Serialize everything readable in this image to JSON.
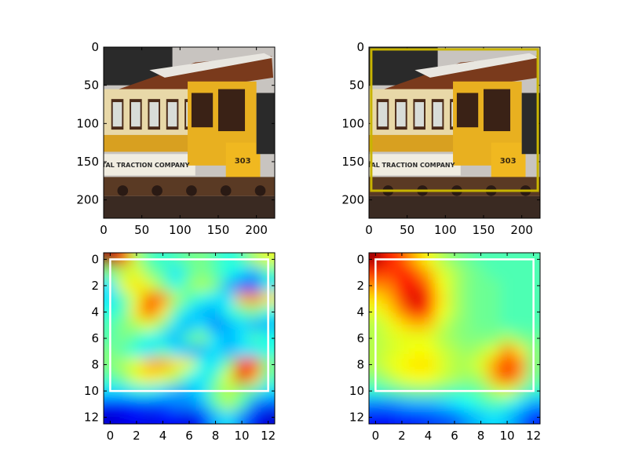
{
  "chart_data": [
    {
      "type": "image",
      "content": "photo of a yellow cable car / streetcar, number 303, lettering 'TRACTION COMPANY'",
      "xlim": [
        0,
        224
      ],
      "ylim": [
        224,
        0
      ],
      "xticks": [
        0,
        50,
        100,
        150,
        200
      ],
      "yticks": [
        0,
        50,
        100,
        150,
        200
      ],
      "box": null
    },
    {
      "type": "image",
      "content": "same streetcar photo with a yellow bounding box",
      "xlim": [
        0,
        224
      ],
      "ylim": [
        224,
        0
      ],
      "xticks": [
        0,
        50,
        100,
        150,
        200
      ],
      "yticks": [
        0,
        50,
        100,
        150,
        200
      ],
      "box": {
        "x0": 3,
        "y0": 3,
        "x1": 221,
        "y1": 188,
        "color": "#c8b400"
      }
    },
    {
      "type": "heatmap",
      "colormap": "jet",
      "xlim": [
        -0.5,
        12.5
      ],
      "ylim": [
        12.5,
        -0.5
      ],
      "xticks": [
        0,
        2,
        4,
        6,
        8,
        10,
        12
      ],
      "yticks": [
        0,
        2,
        4,
        6,
        8,
        10,
        12
      ],
      "box": {
        "x0": 0,
        "y0": 0,
        "x1": 12,
        "y1": 10,
        "color": "#ffffff"
      },
      "values": [
        [
          0.98,
          0.85,
          0.55,
          0.45,
          0.42,
          0.45,
          0.48,
          0.5,
          0.45,
          0.4,
          0.45,
          0.55,
          0.6
        ],
        [
          0.5,
          0.55,
          0.6,
          0.5,
          0.45,
          0.35,
          0.45,
          0.5,
          0.45,
          0.4,
          0.35,
          0.3,
          0.45
        ],
        [
          0.35,
          0.6,
          0.65,
          0.6,
          0.5,
          0.4,
          0.5,
          0.55,
          0.5,
          0.3,
          0.2,
          0.2,
          0.35
        ],
        [
          0.35,
          0.45,
          0.6,
          0.8,
          0.75,
          0.55,
          0.45,
          0.4,
          0.35,
          0.35,
          0.7,
          0.75,
          0.65
        ],
        [
          0.4,
          0.45,
          0.65,
          0.82,
          0.65,
          0.45,
          0.35,
          0.3,
          0.3,
          0.4,
          0.45,
          0.5,
          0.4
        ],
        [
          0.45,
          0.5,
          0.55,
          0.6,
          0.5,
          0.35,
          0.3,
          0.35,
          0.25,
          0.3,
          0.35,
          0.3,
          0.3
        ],
        [
          0.45,
          0.5,
          0.45,
          0.4,
          0.35,
          0.3,
          0.45,
          0.5,
          0.35,
          0.3,
          0.35,
          0.45,
          0.4
        ],
        [
          0.5,
          0.45,
          0.4,
          0.35,
          0.45,
          0.35,
          0.3,
          0.3,
          0.35,
          0.3,
          0.35,
          0.35,
          0.4
        ],
        [
          0.5,
          0.55,
          0.6,
          0.7,
          0.72,
          0.65,
          0.6,
          0.4,
          0.35,
          0.5,
          0.85,
          0.8,
          0.5
        ],
        [
          0.45,
          0.5,
          0.6,
          0.65,
          0.6,
          0.55,
          0.4,
          0.35,
          0.45,
          0.6,
          0.9,
          0.7,
          0.45
        ],
        [
          0.35,
          0.35,
          0.4,
          0.4,
          0.35,
          0.3,
          0.3,
          0.35,
          0.5,
          0.55,
          0.5,
          0.45,
          0.35
        ],
        [
          0.15,
          0.15,
          0.18,
          0.2,
          0.2,
          0.25,
          0.25,
          0.3,
          0.45,
          0.55,
          0.45,
          0.25,
          0.2
        ],
        [
          0.08,
          0.1,
          0.12,
          0.1,
          0.12,
          0.12,
          0.1,
          0.15,
          0.3,
          0.35,
          0.25,
          0.12,
          0.08
        ]
      ]
    },
    {
      "type": "heatmap",
      "colormap": "jet",
      "xlim": [
        -0.5,
        12.5
      ],
      "ylim": [
        12.5,
        -0.5
      ],
      "xticks": [
        0,
        2,
        4,
        6,
        8,
        10,
        12
      ],
      "yticks": [
        0,
        2,
        4,
        6,
        8,
        10,
        12
      ],
      "box": {
        "x0": 0,
        "y0": 0,
        "x1": 12,
        "y1": 10,
        "color": "#ffffff"
      },
      "values": [
        [
          0.98,
          0.85,
          0.8,
          0.7,
          0.62,
          0.55,
          0.5,
          0.48,
          0.45,
          0.45,
          0.45,
          0.45,
          0.45
        ],
        [
          0.85,
          0.82,
          0.85,
          0.8,
          0.7,
          0.6,
          0.55,
          0.5,
          0.48,
          0.45,
          0.45,
          0.45,
          0.45
        ],
        [
          0.75,
          0.75,
          0.85,
          0.88,
          0.78,
          0.62,
          0.55,
          0.5,
          0.48,
          0.48,
          0.45,
          0.45,
          0.45
        ],
        [
          0.65,
          0.7,
          0.82,
          0.92,
          0.85,
          0.65,
          0.55,
          0.5,
          0.48,
          0.48,
          0.45,
          0.45,
          0.45
        ],
        [
          0.6,
          0.65,
          0.75,
          0.88,
          0.8,
          0.62,
          0.55,
          0.5,
          0.48,
          0.48,
          0.45,
          0.45,
          0.45
        ],
        [
          0.55,
          0.6,
          0.65,
          0.7,
          0.68,
          0.58,
          0.52,
          0.5,
          0.48,
          0.48,
          0.45,
          0.45,
          0.45
        ],
        [
          0.55,
          0.58,
          0.6,
          0.6,
          0.6,
          0.55,
          0.52,
          0.5,
          0.5,
          0.5,
          0.55,
          0.5,
          0.48
        ],
        [
          0.55,
          0.58,
          0.6,
          0.62,
          0.62,
          0.58,
          0.55,
          0.52,
          0.55,
          0.6,
          0.75,
          0.65,
          0.5
        ],
        [
          0.55,
          0.6,
          0.62,
          0.65,
          0.65,
          0.6,
          0.55,
          0.55,
          0.6,
          0.72,
          0.85,
          0.75,
          0.5
        ],
        [
          0.5,
          0.55,
          0.6,
          0.62,
          0.62,
          0.58,
          0.55,
          0.52,
          0.55,
          0.7,
          0.88,
          0.7,
          0.48
        ],
        [
          0.42,
          0.45,
          0.48,
          0.5,
          0.5,
          0.48,
          0.45,
          0.45,
          0.48,
          0.55,
          0.6,
          0.5,
          0.42
        ],
        [
          0.25,
          0.25,
          0.28,
          0.3,
          0.3,
          0.32,
          0.35,
          0.38,
          0.42,
          0.45,
          0.42,
          0.35,
          0.28
        ],
        [
          0.12,
          0.12,
          0.15,
          0.15,
          0.18,
          0.2,
          0.22,
          0.28,
          0.32,
          0.35,
          0.32,
          0.25,
          0.15
        ]
      ]
    }
  ]
}
